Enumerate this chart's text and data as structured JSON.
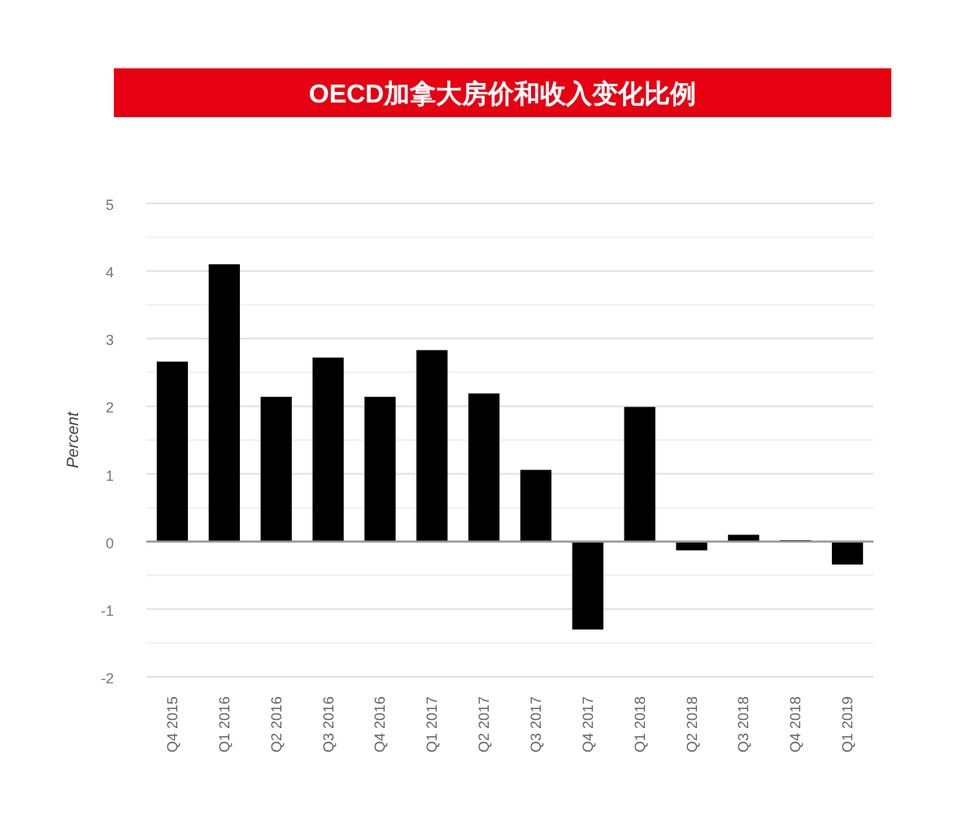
{
  "chart_data": {
    "type": "bar",
    "title": "OECD加拿大房价和收入变化比例",
    "ylabel": "Percent",
    "categories": [
      "Q4 2015",
      "Q1 2016",
      "Q2 2016",
      "Q3 2016",
      "Q4 2016",
      "Q1 2017",
      "Q2 2017",
      "Q3 2017",
      "Q4 2017",
      "Q1 2018",
      "Q2 2018",
      "Q3 2018",
      "Q4 2018",
      "Q1 2019"
    ],
    "values": [
      2.66,
      4.1,
      2.14,
      2.72,
      2.14,
      2.83,
      2.19,
      1.06,
      -1.3,
      1.99,
      -0.13,
      0.1,
      0.02,
      -0.34
    ],
    "color": "#000000",
    "ylim": [
      -2,
      5
    ],
    "yticks": [
      -2,
      {
        "value": -1.5,
        "label": null
      },
      -1,
      {
        "value": -0.5,
        "label": null
      },
      0,
      {
        "value": 0.5,
        "label": null
      },
      1,
      {
        "value": 1.5,
        "label": null
      },
      2,
      {
        "value": 2.5,
        "label": null
      },
      3,
      {
        "value": 3.5,
        "label": null
      },
      4,
      {
        "value": 4.5,
        "label": null
      },
      5
    ],
    "grid": "y"
  }
}
